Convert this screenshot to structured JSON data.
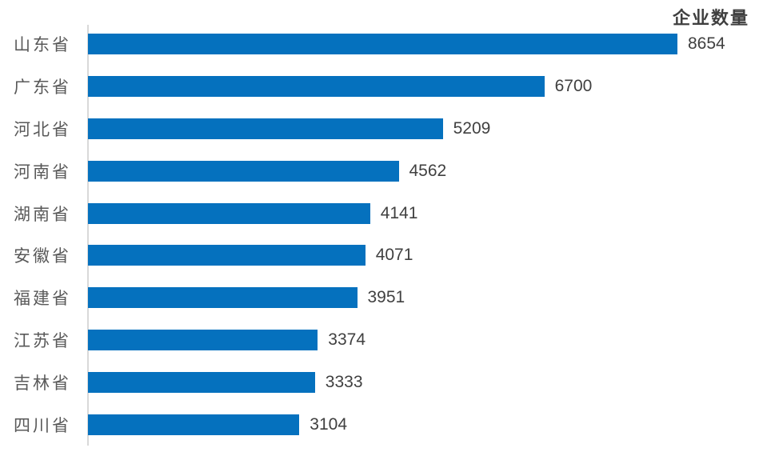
{
  "chart_data": {
    "type": "bar",
    "orientation": "horizontal",
    "title": "企业数量",
    "categories": [
      "山东省",
      "广东省",
      "河北省",
      "河南省",
      "湖南省",
      "安徽省",
      "福建省",
      "江苏省",
      "吉林省",
      "四川省"
    ],
    "values": [
      8654,
      6700,
      5209,
      4562,
      4141,
      4071,
      3951,
      3374,
      3333,
      3104
    ],
    "xlim": [
      0,
      8700
    ],
    "grid": false,
    "data_labels": true,
    "legend_position": "top-right",
    "colors": {
      "bar": "#0571BE",
      "axis_line": "#D9D9D9",
      "category_label": "#595959",
      "value_label": "#404040",
      "title": "#3F3F3F"
    }
  }
}
